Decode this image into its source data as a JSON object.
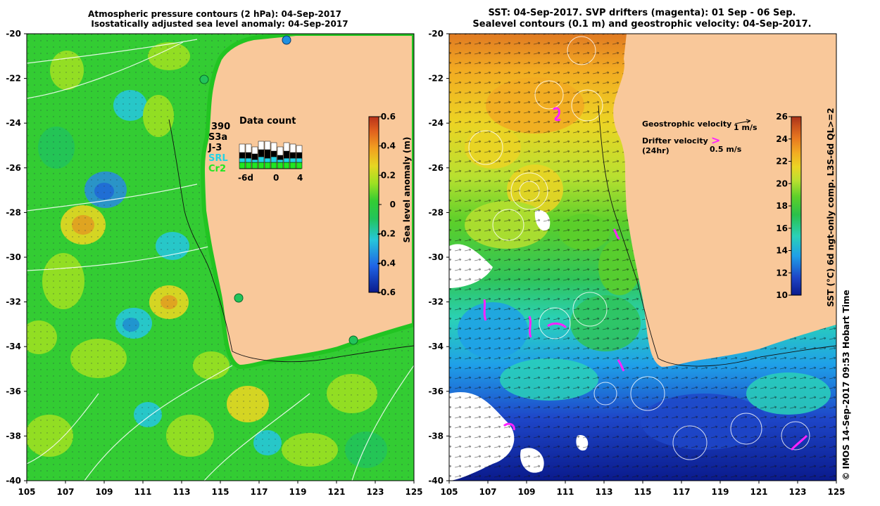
{
  "left_panel": {
    "title_line1": "Atmospheric pressure contours (2 hPa): 04-Sep-2017",
    "title_line2": "Isostatically adjusted sea level anomaly: 04-Sep-2017",
    "colorbar": {
      "label": "Sea level anomaly (m)",
      "ticks": [
        "0.6",
        "0.4",
        "0.2",
        "0",
        "-0.2",
        "-0.4",
        "-0.6"
      ],
      "range": [
        -0.6,
        0.6
      ]
    },
    "data_count": {
      "title": "Data count",
      "total": "390",
      "missions": [
        {
          "name": "S3a",
          "color": "#ffffff"
        },
        {
          "name": "J-3",
          "color": "#000000"
        },
        {
          "name": "SRL",
          "color": "#22d3e6"
        },
        {
          "name": "Cr2",
          "color": "#22e622"
        }
      ],
      "axis_labels": [
        "-6d",
        "0",
        "4"
      ]
    }
  },
  "right_panel": {
    "title_line1": "SST: 04-Sep-2017. SVP drifters (magenta): 01 Sep - 06 Sep.",
    "title_line2": "Sealevel contours (0.1 m) and geostrophic velocity: 04-Sep-2017.",
    "colorbar": {
      "label": "SST (°C) 6d ngt-only comp. L3S-6d QL>=2",
      "ticks": [
        "26",
        "24",
        "22",
        "20",
        "18",
        "16",
        "14",
        "12",
        "10"
      ],
      "range": [
        10,
        26
      ]
    },
    "legend": {
      "geostrophic_label": "Geostrophic velocity",
      "geostrophic_scale": "1 m/s",
      "drifter_label_line1": "Drifter velocity",
      "drifter_label_line2": "(24hr)",
      "drifter_scale": "0.5 m/s",
      "drifter_arrow": ">"
    },
    "credit": "© IMOS 14-Sep-2017 09:53 Hobart Time"
  },
  "axes": {
    "lat_ticks": [
      "-20",
      "-22",
      "-24",
      "-26",
      "-28",
      "-30",
      "-32",
      "-34",
      "-36",
      "-38",
      "-40"
    ],
    "lon_ticks": [
      "105",
      "107",
      "109",
      "111",
      "113",
      "115",
      "117",
      "119",
      "121",
      "123",
      "125"
    ]
  },
  "colors": {
    "land": "#f9c89a",
    "drifter": "#ff22ff",
    "sla_ramp": [
      "#0a1a8c",
      "#1f64e6",
      "#26c7d9",
      "#22c45a",
      "#33cc33",
      "#9de022",
      "#e6d622",
      "#f2a020",
      "#e0601e",
      "#b8321a"
    ],
    "sst_ramp": [
      "#0a1a8c",
      "#1e46c8",
      "#1fa0e8",
      "#2ad1b8",
      "#29c04a",
      "#5ccf2a",
      "#b8e030",
      "#ecd424",
      "#f2aa22",
      "#e87820",
      "#c8501c",
      "#a8321a"
    ]
  }
}
